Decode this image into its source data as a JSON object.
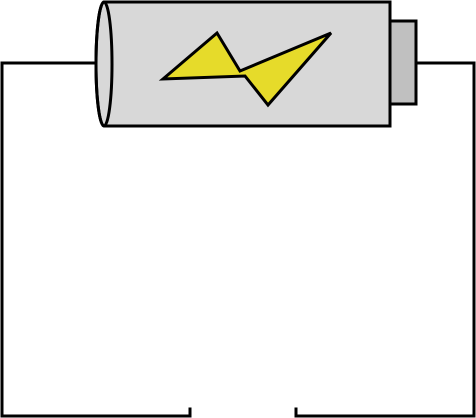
{
  "diagram": {
    "type": "open-circuit",
    "components": [
      {
        "kind": "battery",
        "icon": "lightning-bolt-icon"
      },
      {
        "kind": "wire-loop",
        "gap": "bottom-center"
      }
    ]
  },
  "colors": {
    "background": "#ffffff",
    "wire": "#000000",
    "battery_body": "#d8d8d8",
    "battery_terminal": "#c0c0c0",
    "bolt": "#e6db2a",
    "outline": "#000000"
  }
}
